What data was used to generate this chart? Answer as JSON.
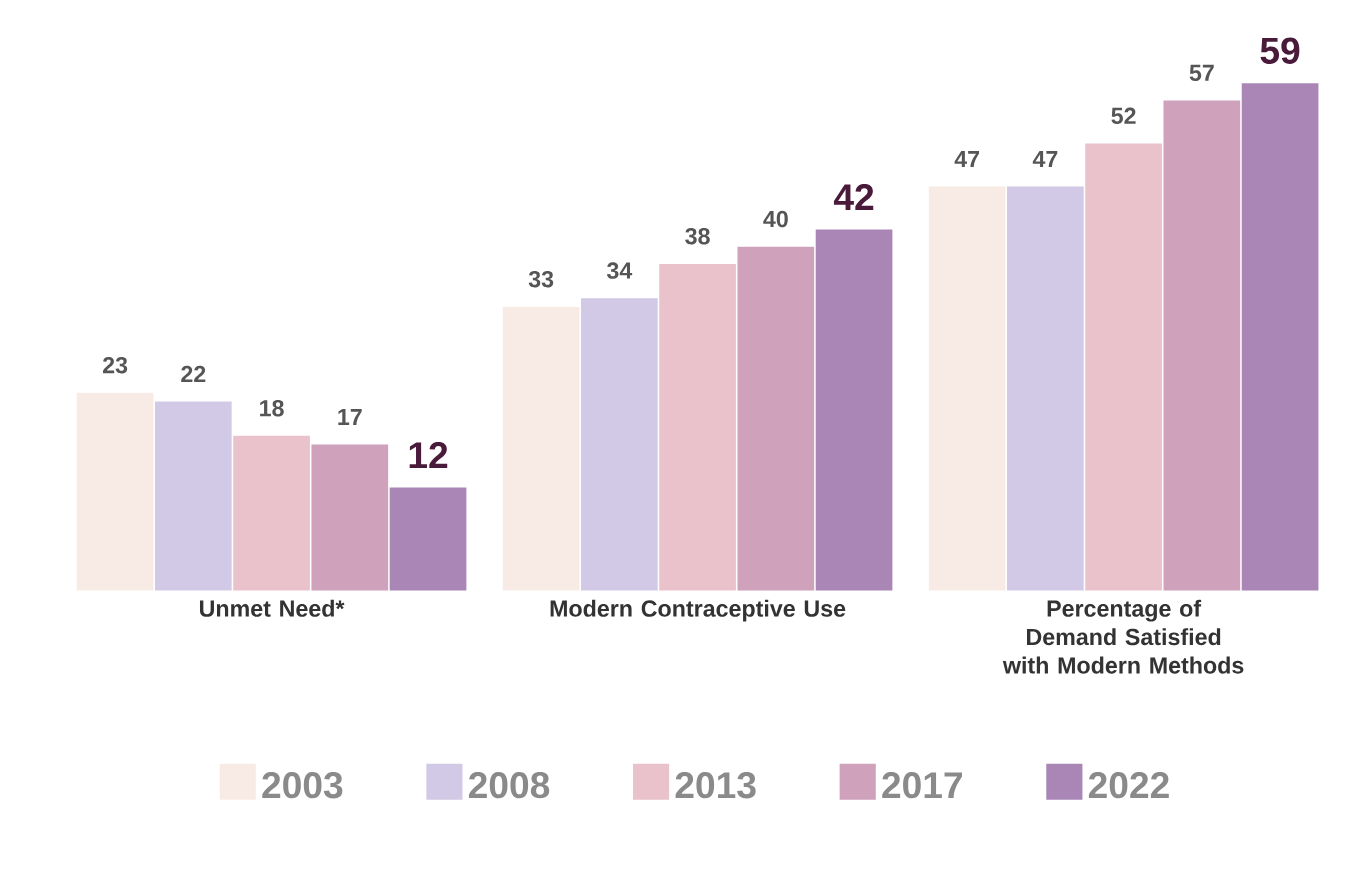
{
  "chart_data": {
    "type": "bar",
    "categories": [
      "Unmet Need*",
      "Modern Contraceptive Use",
      "Percentage of Demand Satisfied with Modern Methods"
    ],
    "series": [
      {
        "name": "2003",
        "color": "#f8ebe6",
        "values": [
          23,
          33,
          47
        ]
      },
      {
        "name": "2008",
        "color": "#d1c9e5",
        "values": [
          22,
          34,
          47
        ]
      },
      {
        "name": "2013",
        "color": "#e9c2cb",
        "values": [
          18,
          38,
          52
        ]
      },
      {
        "name": "2017",
        "color": "#cfa1bb",
        "values": [
          17,
          40,
          57
        ]
      },
      {
        "name": "2022",
        "color": "#a986b6",
        "values": [
          12,
          42,
          59
        ]
      }
    ],
    "data_labels": true,
    "legend": "bottom"
  }
}
